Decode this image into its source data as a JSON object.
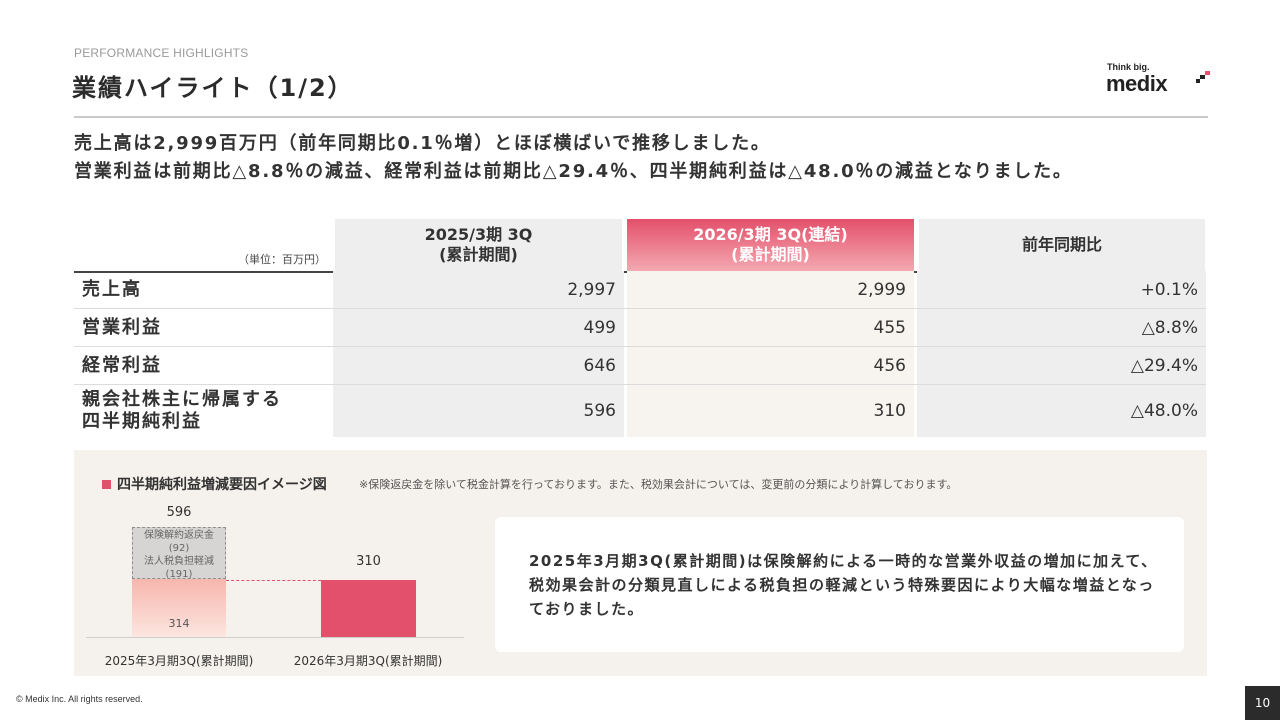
{
  "header": {
    "eyebrow": "PERFORMANCE HIGHLIGHTS",
    "title": "業績ハイライト（1/2）",
    "logo": {
      "tagline": "Think big.",
      "wordmark": "medix"
    }
  },
  "lead": {
    "line1": "売上高は2,999百万円（前年同期比0.1％増）とほぼ横ばいで推移しました。",
    "line2": "営業利益は前期比△8.8％の減益、経常利益は前期比△29.4％、四半期純利益は△48.0％の減益となりました。"
  },
  "table": {
    "unit": "（単位：百万円）",
    "headers": {
      "prev": [
        "2025/3期 3Q",
        "(累計期間)"
      ],
      "cur": [
        "2026/3期 3Q(連結)",
        "(累計期間)"
      ],
      "yoy": "前年同期比"
    },
    "rows": [
      {
        "label": [
          "売上高"
        ],
        "prev": "2,997",
        "cur": "2,999",
        "yoy": "+0.1%"
      },
      {
        "label": [
          "営業利益"
        ],
        "prev": "499",
        "cur": "455",
        "yoy": "△8.8%"
      },
      {
        "label": [
          "経常利益"
        ],
        "prev": "646",
        "cur": "456",
        "yoy": "△29.4%"
      },
      {
        "label": [
          "親会社株主に帰属する",
          "四半期純利益"
        ],
        "prev": "596",
        "cur": "310",
        "yoy": "△48.0%"
      }
    ]
  },
  "panel": {
    "title": "四半期純利益増減要因イメージ図",
    "note": "※保険返戻金を除いて税金計算を行っております。また、税効果会計については、変更前の分類により計算しております。",
    "explanation": "2025年3月期3Q(累計期間)は保険解約による一時的な営業外収益の増加に加えて、税効果会計の分類見直しによる税負担の軽減という特殊要因により大幅な増益となっておりました。"
  },
  "chart_data": {
    "type": "bar",
    "categories": [
      "2025年3月期3Q(累計期間)",
      "2026年3月期3Q(累計期間)"
    ],
    "totals": [
      596,
      310
    ],
    "base_values": [
      314,
      310
    ],
    "adjustments": [
      {
        "category": "2025年3月期3Q(累計期間)",
        "label": "保険解約返戻金",
        "value": 92,
        "display": "(92)"
      },
      {
        "category": "2025年3月期3Q(累計期間)",
        "label": "法人税負担軽減",
        "value": 191,
        "display": "(191)"
      }
    ],
    "colors": {
      "base_prev": "#f7b6ad",
      "current": "#e3506b",
      "adjustment": "#d7d5d3"
    }
  },
  "footer": {
    "copyright": "© Medix Inc. All rights reserved.",
    "page": "10"
  }
}
